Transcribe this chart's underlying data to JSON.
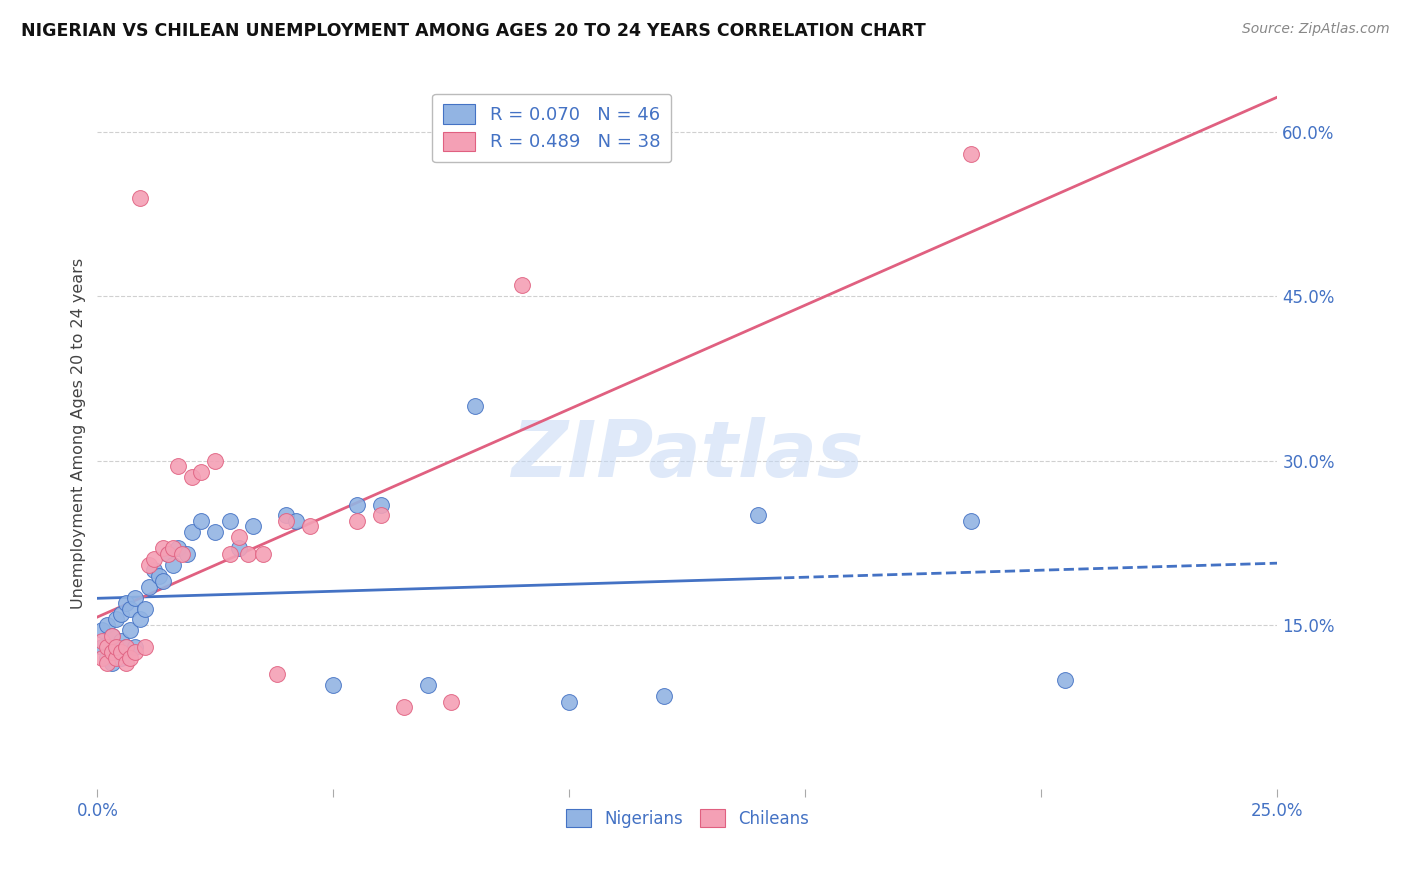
{
  "title": "NIGERIAN VS CHILEAN UNEMPLOYMENT AMONG AGES 20 TO 24 YEARS CORRELATION CHART",
  "source": "Source: ZipAtlas.com",
  "ylabel": "Unemployment Among Ages 20 to 24 years",
  "xlim": [
    0.0,
    0.25
  ],
  "ylim": [
    0.0,
    0.65
  ],
  "xticks": [
    0.0,
    0.05,
    0.1,
    0.15,
    0.2,
    0.25
  ],
  "xtick_labels": [
    "0.0%",
    "",
    "",
    "",
    "",
    "25.0%"
  ],
  "yticks": [
    0.15,
    0.3,
    0.45,
    0.6
  ],
  "ytick_labels": [
    "15.0%",
    "30.0%",
    "45.0%",
    "60.0%"
  ],
  "nigerian_color": "#92b4e3",
  "chilean_color": "#f4a0b5",
  "nigerian_line_color": "#4472c4",
  "chilean_line_color": "#e06080",
  "legend_r1": "R = 0.070   N = 46",
  "legend_r2": "R = 0.489   N = 38",
  "watermark": "ZIPatlas",
  "nigerian_x": [
    0.001,
    0.001,
    0.002,
    0.002,
    0.003,
    0.003,
    0.003,
    0.004,
    0.004,
    0.005,
    0.005,
    0.005,
    0.006,
    0.006,
    0.007,
    0.007,
    0.008,
    0.008,
    0.009,
    0.01,
    0.011,
    0.012,
    0.013,
    0.014,
    0.015,
    0.016,
    0.017,
    0.019,
    0.02,
    0.022,
    0.025,
    0.028,
    0.03,
    0.033,
    0.04,
    0.042,
    0.05,
    0.055,
    0.06,
    0.07,
    0.08,
    0.1,
    0.12,
    0.14,
    0.185,
    0.205
  ],
  "nigerian_y": [
    0.13,
    0.145,
    0.12,
    0.15,
    0.115,
    0.125,
    0.14,
    0.125,
    0.155,
    0.12,
    0.135,
    0.16,
    0.13,
    0.17,
    0.145,
    0.165,
    0.13,
    0.175,
    0.155,
    0.165,
    0.185,
    0.2,
    0.195,
    0.19,
    0.215,
    0.205,
    0.22,
    0.215,
    0.235,
    0.245,
    0.235,
    0.245,
    0.22,
    0.24,
    0.25,
    0.245,
    0.095,
    0.26,
    0.26,
    0.095,
    0.35,
    0.08,
    0.085,
    0.25,
    0.245,
    0.1
  ],
  "chilean_x": [
    0.001,
    0.001,
    0.002,
    0.002,
    0.003,
    0.003,
    0.004,
    0.004,
    0.005,
    0.006,
    0.006,
    0.007,
    0.008,
    0.009,
    0.01,
    0.011,
    0.012,
    0.014,
    0.015,
    0.016,
    0.017,
    0.018,
    0.02,
    0.022,
    0.025,
    0.028,
    0.03,
    0.032,
    0.035,
    0.038,
    0.04,
    0.045,
    0.055,
    0.06,
    0.065,
    0.075,
    0.09,
    0.185
  ],
  "chilean_y": [
    0.12,
    0.135,
    0.115,
    0.13,
    0.125,
    0.14,
    0.12,
    0.13,
    0.125,
    0.115,
    0.13,
    0.12,
    0.125,
    0.54,
    0.13,
    0.205,
    0.21,
    0.22,
    0.215,
    0.22,
    0.295,
    0.215,
    0.285,
    0.29,
    0.3,
    0.215,
    0.23,
    0.215,
    0.215,
    0.105,
    0.245,
    0.24,
    0.245,
    0.25,
    0.075,
    0.08,
    0.46,
    0.58
  ],
  "background_color": "#ffffff",
  "grid_color": "#d0d0d0",
  "nig_line_split": 0.145
}
